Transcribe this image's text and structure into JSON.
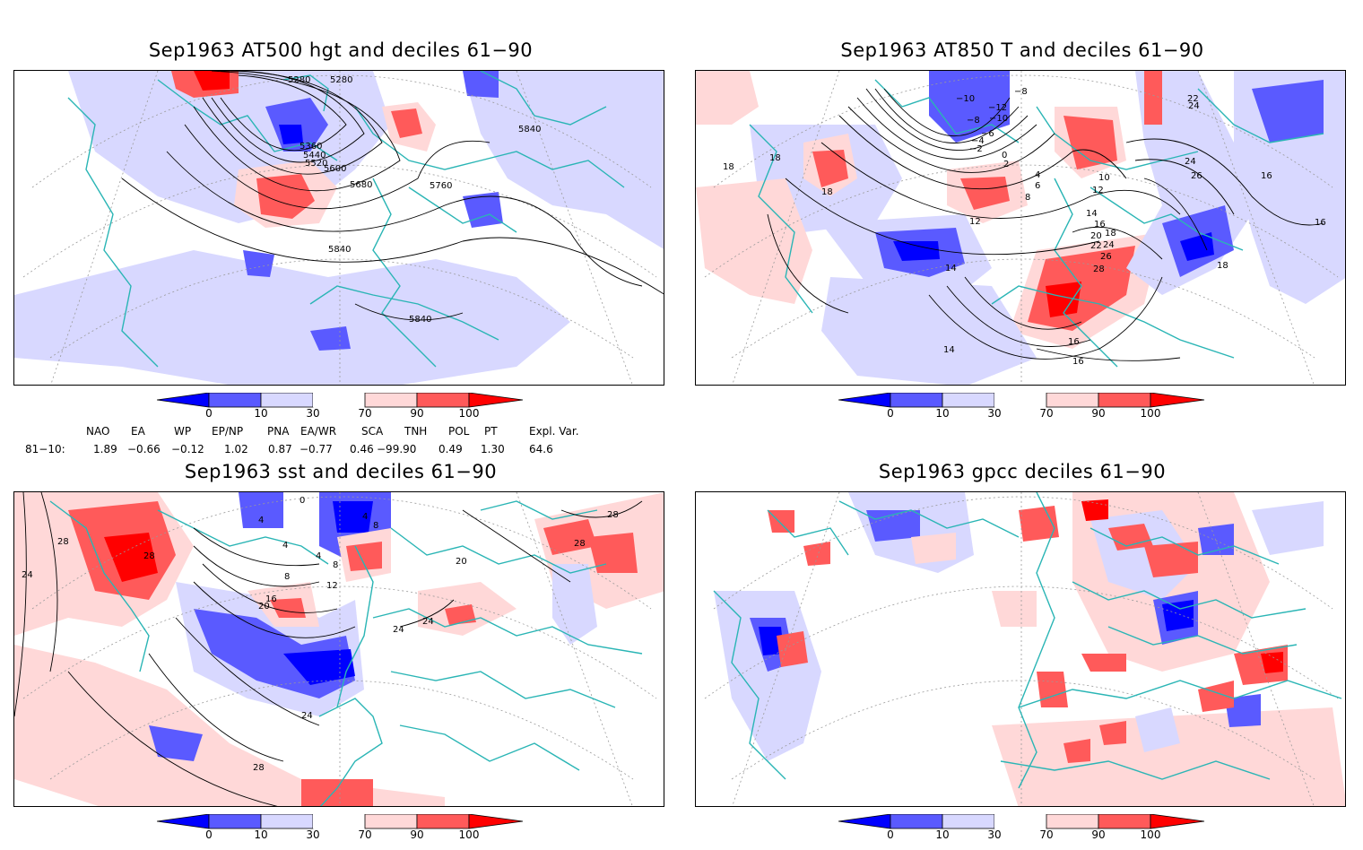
{
  "panels": {
    "tl": {
      "title": "Sep1963 AT500 hgt and deciles 61−90",
      "contour_labels": [
        "5280",
        "5280",
        "5360",
        "5440",
        "5520",
        "5600",
        "5680",
        "5760",
        "5840",
        "5840",
        "5840"
      ]
    },
    "tr": {
      "title": "Sep1963 AT850 T and deciles 61−90",
      "contour_labels": [
        "18",
        "−10",
        "−8",
        "−12",
        "−10",
        "−8",
        "−6",
        "−4",
        "−2",
        "0",
        "2",
        "4",
        "6",
        "8",
        "10",
        "12",
        "12",
        "14",
        "14",
        "16",
        "16",
        "16",
        "16",
        "18",
        "18",
        "18",
        "20",
        "22",
        "24",
        "24",
        "26",
        "26",
        "28",
        "22",
        "24",
        "16",
        "18",
        "14"
      ]
    },
    "bl": {
      "title": "Sep1963 sst and deciles 61−90",
      "contour_labels": [
        "28",
        "24",
        "28",
        "4",
        "4",
        "4",
        "8",
        "8",
        "12",
        "16",
        "20",
        "20",
        "24",
        "24",
        "24",
        "0",
        "4",
        "8",
        "28"
      ]
    },
    "br": {
      "title": "Sep1963 gpcc deciles 61−90"
    }
  },
  "colorbar": {
    "ticks": [
      "0",
      "10",
      "30",
      "70",
      "90",
      "100"
    ],
    "colors": {
      "deep_blue": "#0000ff",
      "mid_blue": "#5a5aff",
      "light_blue": "#d8d8ff",
      "white": "#ffffff",
      "light_red": "#ffd8d8",
      "mid_red": "#ff5a5a",
      "deep_red": "#ff0000"
    }
  },
  "indices": {
    "headers": [
      "NAO",
      "EA",
      "WP",
      "EP/NP",
      "PNA",
      "EA/WR",
      "SCA",
      "TNH",
      "POL",
      "PT",
      "Expl. Var."
    ],
    "row_label": "81−10:",
    "values": [
      "1.89",
      "−0.66",
      "−0.12",
      "1.02",
      "0.87",
      "−0.77",
      "0.46",
      "−99.90",
      "0.49",
      "1.30",
      "64.6"
    ]
  },
  "map_colors": {
    "coast": "#2ab5b5",
    "grid": "#9a9a9a",
    "contour": "#000000"
  }
}
